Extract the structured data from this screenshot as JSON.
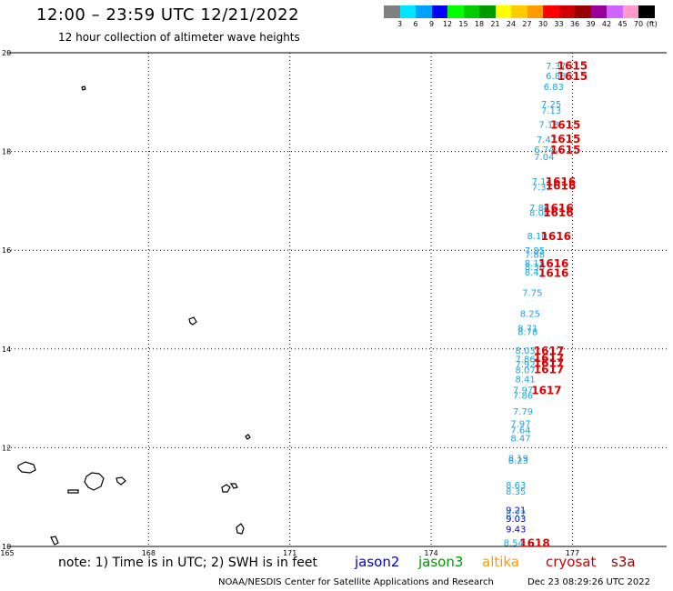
{
  "header": {
    "title": "12:00 – 23:59 UTC 12/21/2022",
    "subtitle": "12 hour collection of altimeter wave heights"
  },
  "color_scale": {
    "colors": [
      "#808080",
      "#00e5ff",
      "#00a0ff",
      "#0000ff",
      "#00ff00",
      "#00cc00",
      "#009900",
      "#ffff00",
      "#ffcc00",
      "#ff9900",
      "#ff0000",
      "#cc0000",
      "#990000",
      "#990099",
      "#cc66ff",
      "#ff99cc",
      "#000000"
    ],
    "labels": [
      "3",
      "6",
      "9",
      "12",
      "15",
      "18",
      "21",
      "24",
      "27",
      "30",
      "33",
      "36",
      "39",
      "42",
      "45",
      "70",
      "(ft)"
    ]
  },
  "map": {
    "lon_ticks": [
      "165",
      "168",
      "171",
      "174",
      "177"
    ],
    "lat_ticks": [
      "20",
      "18",
      "16",
      "14",
      "12",
      "10"
    ],
    "lon_range": [
      165,
      179
    ],
    "lat_range": [
      10,
      20
    ]
  },
  "wave_readings": [
    {
      "lat": 19.74,
      "lon": 176.65,
      "value": "7.37",
      "color": "#1aa6e0"
    },
    {
      "lat": 19.54,
      "lon": 176.65,
      "value": "6.88",
      "color": "#1aa6e0"
    },
    {
      "lat": 19.32,
      "lon": 176.6,
      "value": "6.83",
      "color": "#1aa6e0"
    },
    {
      "lat": 18.97,
      "lon": 176.55,
      "value": "7.25",
      "color": "#1aa6e0"
    },
    {
      "lat": 18.84,
      "lon": 176.55,
      "value": "7.13",
      "color": "#1aa6e0"
    },
    {
      "lat": 18.55,
      "lon": 176.5,
      "value": "7.13",
      "color": "#1aa6e0"
    },
    {
      "lat": 18.25,
      "lon": 176.45,
      "value": "7.47",
      "color": "#1aa6e0"
    },
    {
      "lat": 18.05,
      "lon": 176.4,
      "value": "6.74",
      "color": "#1aa6e0"
    },
    {
      "lat": 17.9,
      "lon": 176.4,
      "value": "7.04",
      "color": "#1aa6e0"
    },
    {
      "lat": 17.4,
      "lon": 176.35,
      "value": "7.14",
      "color": "#1aa6e0"
    },
    {
      "lat": 17.28,
      "lon": 176.35,
      "value": "7.37",
      "color": "#1aa6e0"
    },
    {
      "lat": 16.87,
      "lon": 176.3,
      "value": "7.86",
      "color": "#1aa6e0"
    },
    {
      "lat": 16.77,
      "lon": 176.3,
      "value": "8.00",
      "color": "#1aa6e0"
    },
    {
      "lat": 16.3,
      "lon": 176.25,
      "value": "8.10",
      "color": "#1aa6e0"
    },
    {
      "lat": 16.0,
      "lon": 176.2,
      "value": "7.85",
      "color": "#1aa6e0"
    },
    {
      "lat": 15.92,
      "lon": 176.2,
      "value": "7.88",
      "color": "#1aa6e0"
    },
    {
      "lat": 15.75,
      "lon": 176.2,
      "value": "8.15",
      "color": "#1aa6e0"
    },
    {
      "lat": 15.67,
      "lon": 176.2,
      "value": "8.30",
      "color": "#1aa6e0"
    },
    {
      "lat": 15.56,
      "lon": 176.2,
      "value": "8.41",
      "color": "#1aa6e0"
    },
    {
      "lat": 15.15,
      "lon": 176.15,
      "value": "7.75",
      "color": "#1aa6e0"
    },
    {
      "lat": 14.72,
      "lon": 176.1,
      "value": "8.25",
      "color": "#1aa6e0"
    },
    {
      "lat": 14.43,
      "lon": 176.05,
      "value": "8.71",
      "color": "#1aa6e0"
    },
    {
      "lat": 14.36,
      "lon": 176.05,
      "value": "8.78",
      "color": "#1aa6e0"
    },
    {
      "lat": 13.98,
      "lon": 176.0,
      "value": "8.03",
      "color": "#1aa6e0"
    },
    {
      "lat": 13.8,
      "lon": 176.0,
      "value": "7.86",
      "color": "#1aa6e0"
    },
    {
      "lat": 13.7,
      "lon": 176.0,
      "value": "7.92",
      "color": "#1aa6e0"
    },
    {
      "lat": 13.58,
      "lon": 176.0,
      "value": "8.07",
      "color": "#1aa6e0"
    },
    {
      "lat": 13.4,
      "lon": 176.0,
      "value": "8.41",
      "color": "#1aa6e0"
    },
    {
      "lat": 13.18,
      "lon": 175.95,
      "value": "7.97",
      "color": "#1aa6e0"
    },
    {
      "lat": 13.07,
      "lon": 175.95,
      "value": "7.86",
      "color": "#1aa6e0"
    },
    {
      "lat": 12.74,
      "lon": 175.95,
      "value": "7.79",
      "color": "#1aa6e0"
    },
    {
      "lat": 12.5,
      "lon": 175.9,
      "value": "7.97",
      "color": "#1aa6e0"
    },
    {
      "lat": 12.37,
      "lon": 175.9,
      "value": "7.64",
      "color": "#1aa6e0"
    },
    {
      "lat": 12.2,
      "lon": 175.9,
      "value": "8.47",
      "color": "#1aa6e0"
    },
    {
      "lat": 11.8,
      "lon": 175.85,
      "value": "8.19",
      "color": "#1aa6e0"
    },
    {
      "lat": 11.75,
      "lon": 175.85,
      "value": "8.23",
      "color": "#1aa6e0"
    },
    {
      "lat": 11.25,
      "lon": 175.8,
      "value": "8.63",
      "color": "#1aa6e0"
    },
    {
      "lat": 11.12,
      "lon": 175.8,
      "value": "8.35",
      "color": "#1aa6e0"
    },
    {
      "lat": 10.75,
      "lon": 175.8,
      "value": "9.21",
      "color": "#0000cc"
    },
    {
      "lat": 10.67,
      "lon": 175.8,
      "value": "8.77",
      "color": "#1aa6e0"
    },
    {
      "lat": 10.57,
      "lon": 175.8,
      "value": "9.03",
      "color": "#0000cc"
    },
    {
      "lat": 10.36,
      "lon": 175.8,
      "value": "9.43",
      "color": "#0000cc"
    },
    {
      "lat": 10.08,
      "lon": 175.75,
      "value": "8.54",
      "color": "#1aa6e0"
    }
  ],
  "time_labels": [
    {
      "lat": 19.75,
      "lon": 177.0,
      "value": "1615"
    },
    {
      "lat": 19.54,
      "lon": 177.0,
      "value": "1615"
    },
    {
      "lat": 18.55,
      "lon": 176.85,
      "value": "1615"
    },
    {
      "lat": 18.27,
      "lon": 176.85,
      "value": "1615"
    },
    {
      "lat": 18.05,
      "lon": 176.85,
      "value": "1615"
    },
    {
      "lat": 17.4,
      "lon": 176.75,
      "value": "1616"
    },
    {
      "lat": 17.32,
      "lon": 176.75,
      "value": "1616"
    },
    {
      "lat": 16.87,
      "lon": 176.7,
      "value": "1616"
    },
    {
      "lat": 16.78,
      "lon": 176.7,
      "value": "1616"
    },
    {
      "lat": 16.3,
      "lon": 176.65,
      "value": "1616"
    },
    {
      "lat": 15.75,
      "lon": 176.6,
      "value": "1616"
    },
    {
      "lat": 15.55,
      "lon": 176.6,
      "value": "1616"
    },
    {
      "lat": 13.98,
      "lon": 176.5,
      "value": "1617"
    },
    {
      "lat": 13.83,
      "lon": 176.5,
      "value": "1617"
    },
    {
      "lat": 13.73,
      "lon": 176.5,
      "value": "1617"
    },
    {
      "lat": 13.6,
      "lon": 176.5,
      "value": "1617"
    },
    {
      "lat": 13.18,
      "lon": 176.45,
      "value": "1617"
    },
    {
      "lat": 10.08,
      "lon": 176.2,
      "value": "1618"
    }
  ],
  "footer": {
    "note": "note: 1) Time is in UTC; 2) SWH is in feet",
    "satellites": [
      {
        "name": "jason2",
        "color": "#0000cc"
      },
      {
        "name": "jason3",
        "color": "#009900"
      },
      {
        "name": "altika",
        "color": "#ff9900"
      },
      {
        "name": "cryosat",
        "color": "#cc0000"
      },
      {
        "name": "s3a",
        "color": "#990000"
      }
    ],
    "credit": "NOAA/NESDIS Center for Satellite Applications and Research",
    "timestamp": "Dec 23 08:29:26 UTC 2022"
  }
}
